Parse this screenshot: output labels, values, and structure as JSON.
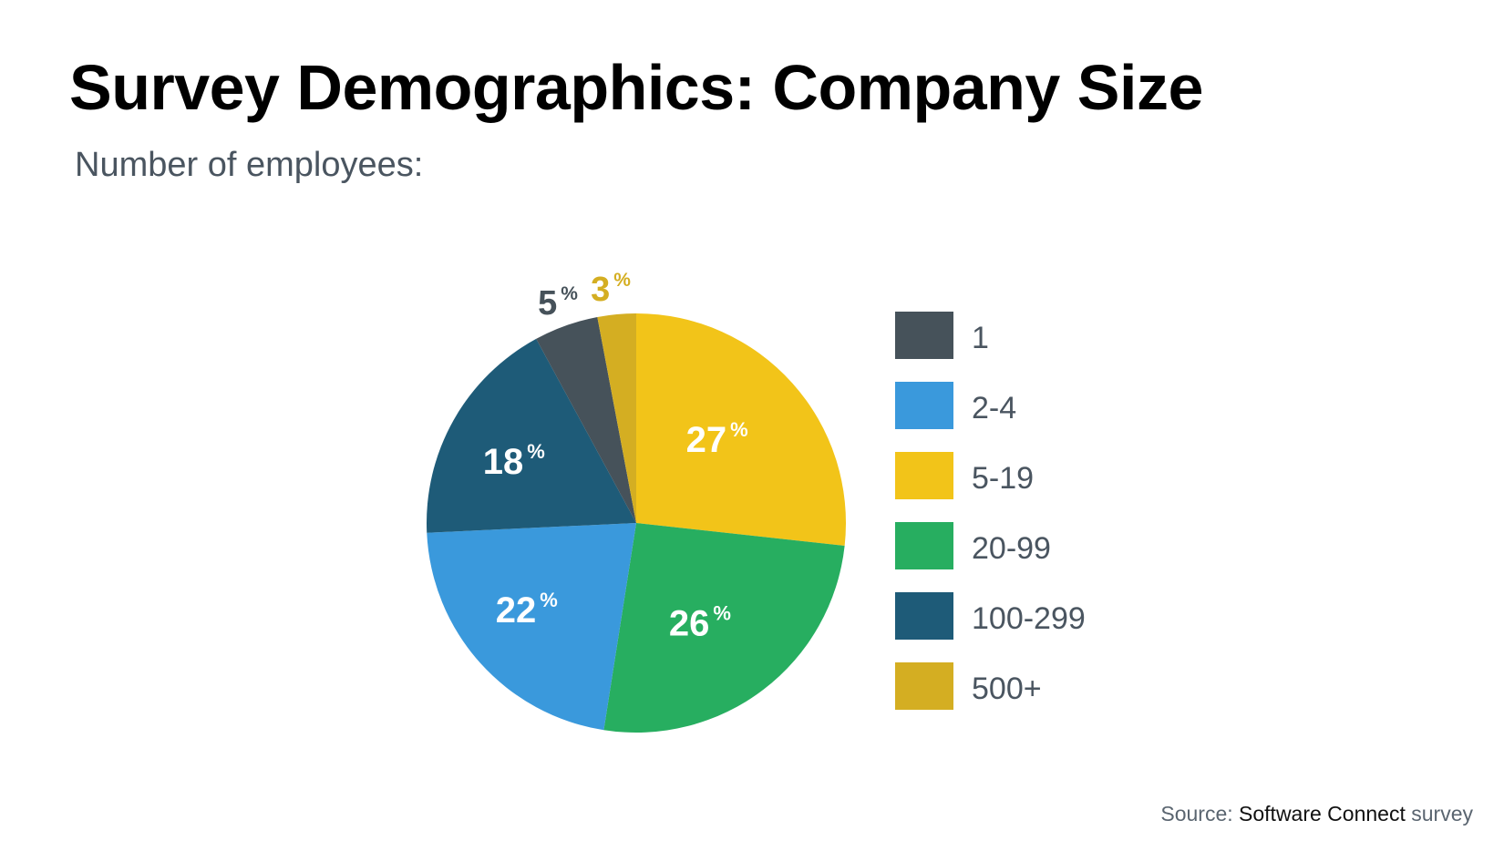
{
  "header": {
    "title": "Survey Demographics: Company Size",
    "subtitle": "Number of employees:"
  },
  "source": {
    "prefix": "Source: ",
    "name": "Software Connect",
    "suffix": " survey"
  },
  "chart_data": {
    "type": "pie",
    "title": "Survey Demographics: Company Size",
    "subtitle": "Number of employees:",
    "legend_position": "right",
    "percent_symbol": "%",
    "categories": [
      "1",
      "2-4",
      "5-19",
      "20-99",
      "100-299",
      "500+"
    ],
    "values": [
      5,
      22,
      27,
      26,
      18,
      3
    ],
    "colors": {
      "1": "#46525a",
      "2-4": "#3a99dc",
      "5-19": "#f2c419",
      "20-99": "#27ae60",
      "100-299": "#1e5b78",
      "500+": "#d4ae22"
    },
    "slice_order_clockwise_from_top": [
      "5-19",
      "20-99",
      "2-4",
      "100-299",
      "1",
      "500+"
    ],
    "label_colors": {
      "inside": "#ffffff",
      "1": "#46525a",
      "500+": "#d4ae22"
    }
  }
}
